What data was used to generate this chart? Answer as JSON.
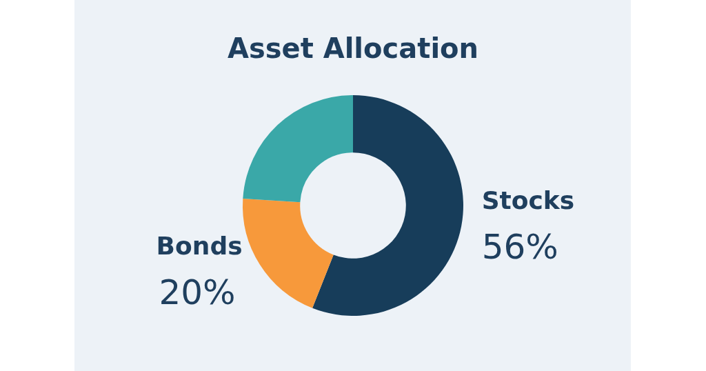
{
  "chart_data": {
    "type": "donut",
    "title": "Asset Allocation",
    "categories": [
      "Stocks",
      "Bonds",
      null
    ],
    "values": [
      56,
      20,
      24
    ],
    "colors": [
      "#173d5a",
      "#f7993b",
      "#3aa8a8"
    ],
    "value_labels": [
      "56%",
      "20%",
      null
    ]
  }
}
